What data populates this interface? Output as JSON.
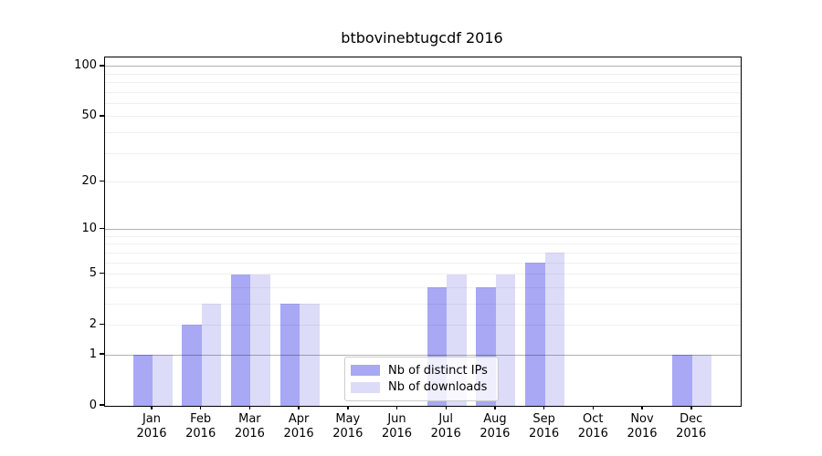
{
  "title": "btbovinebtugcdf 2016",
  "colors": {
    "series_distinct_ips": "#a8a8f5",
    "series_downloads": "#dcdcf8",
    "grid_major": "#b3b3b3",
    "grid_minor": "#efefef",
    "spine": "#000000",
    "legend_border": "#cccccc",
    "text": "#000000"
  },
  "legend": {
    "items": [
      {
        "label": "Nb of distinct IPs",
        "series_index": 0
      },
      {
        "label": "Nb of downloads",
        "series_index": 1
      }
    ],
    "position": "inside lower center"
  },
  "chart_data": {
    "type": "bar",
    "title": "btbovinebtugcdf 2016",
    "xlabel": "",
    "ylabel": "",
    "categories": [
      "Jan 2016",
      "Feb 2016",
      "Mar 2016",
      "Apr 2016",
      "May 2016",
      "Jun 2016",
      "Jul 2016",
      "Aug 2016",
      "Sep 2016",
      "Oct 2016",
      "Nov 2016",
      "Dec 2016"
    ],
    "series": [
      {
        "name": "Nb of distinct IPs",
        "color": "#a8a8f5",
        "values": [
          1,
          2,
          5,
          3,
          0,
          0,
          4,
          4,
          6,
          0,
          0,
          1
        ]
      },
      {
        "name": "Nb of downloads",
        "color": "#dcdcf8",
        "values": [
          1,
          3,
          5,
          3,
          0,
          0,
          5,
          5,
          7,
          0,
          0,
          1
        ]
      }
    ],
    "yscale": "log10(1+y)",
    "yticks": [
      0,
      1,
      2,
      5,
      10,
      20,
      50,
      100
    ],
    "ylim": [
      0,
      113
    ],
    "grid": true,
    "grid_major_at": [
      1,
      10,
      100
    ],
    "legend_position": "lower center (inside axes)"
  }
}
